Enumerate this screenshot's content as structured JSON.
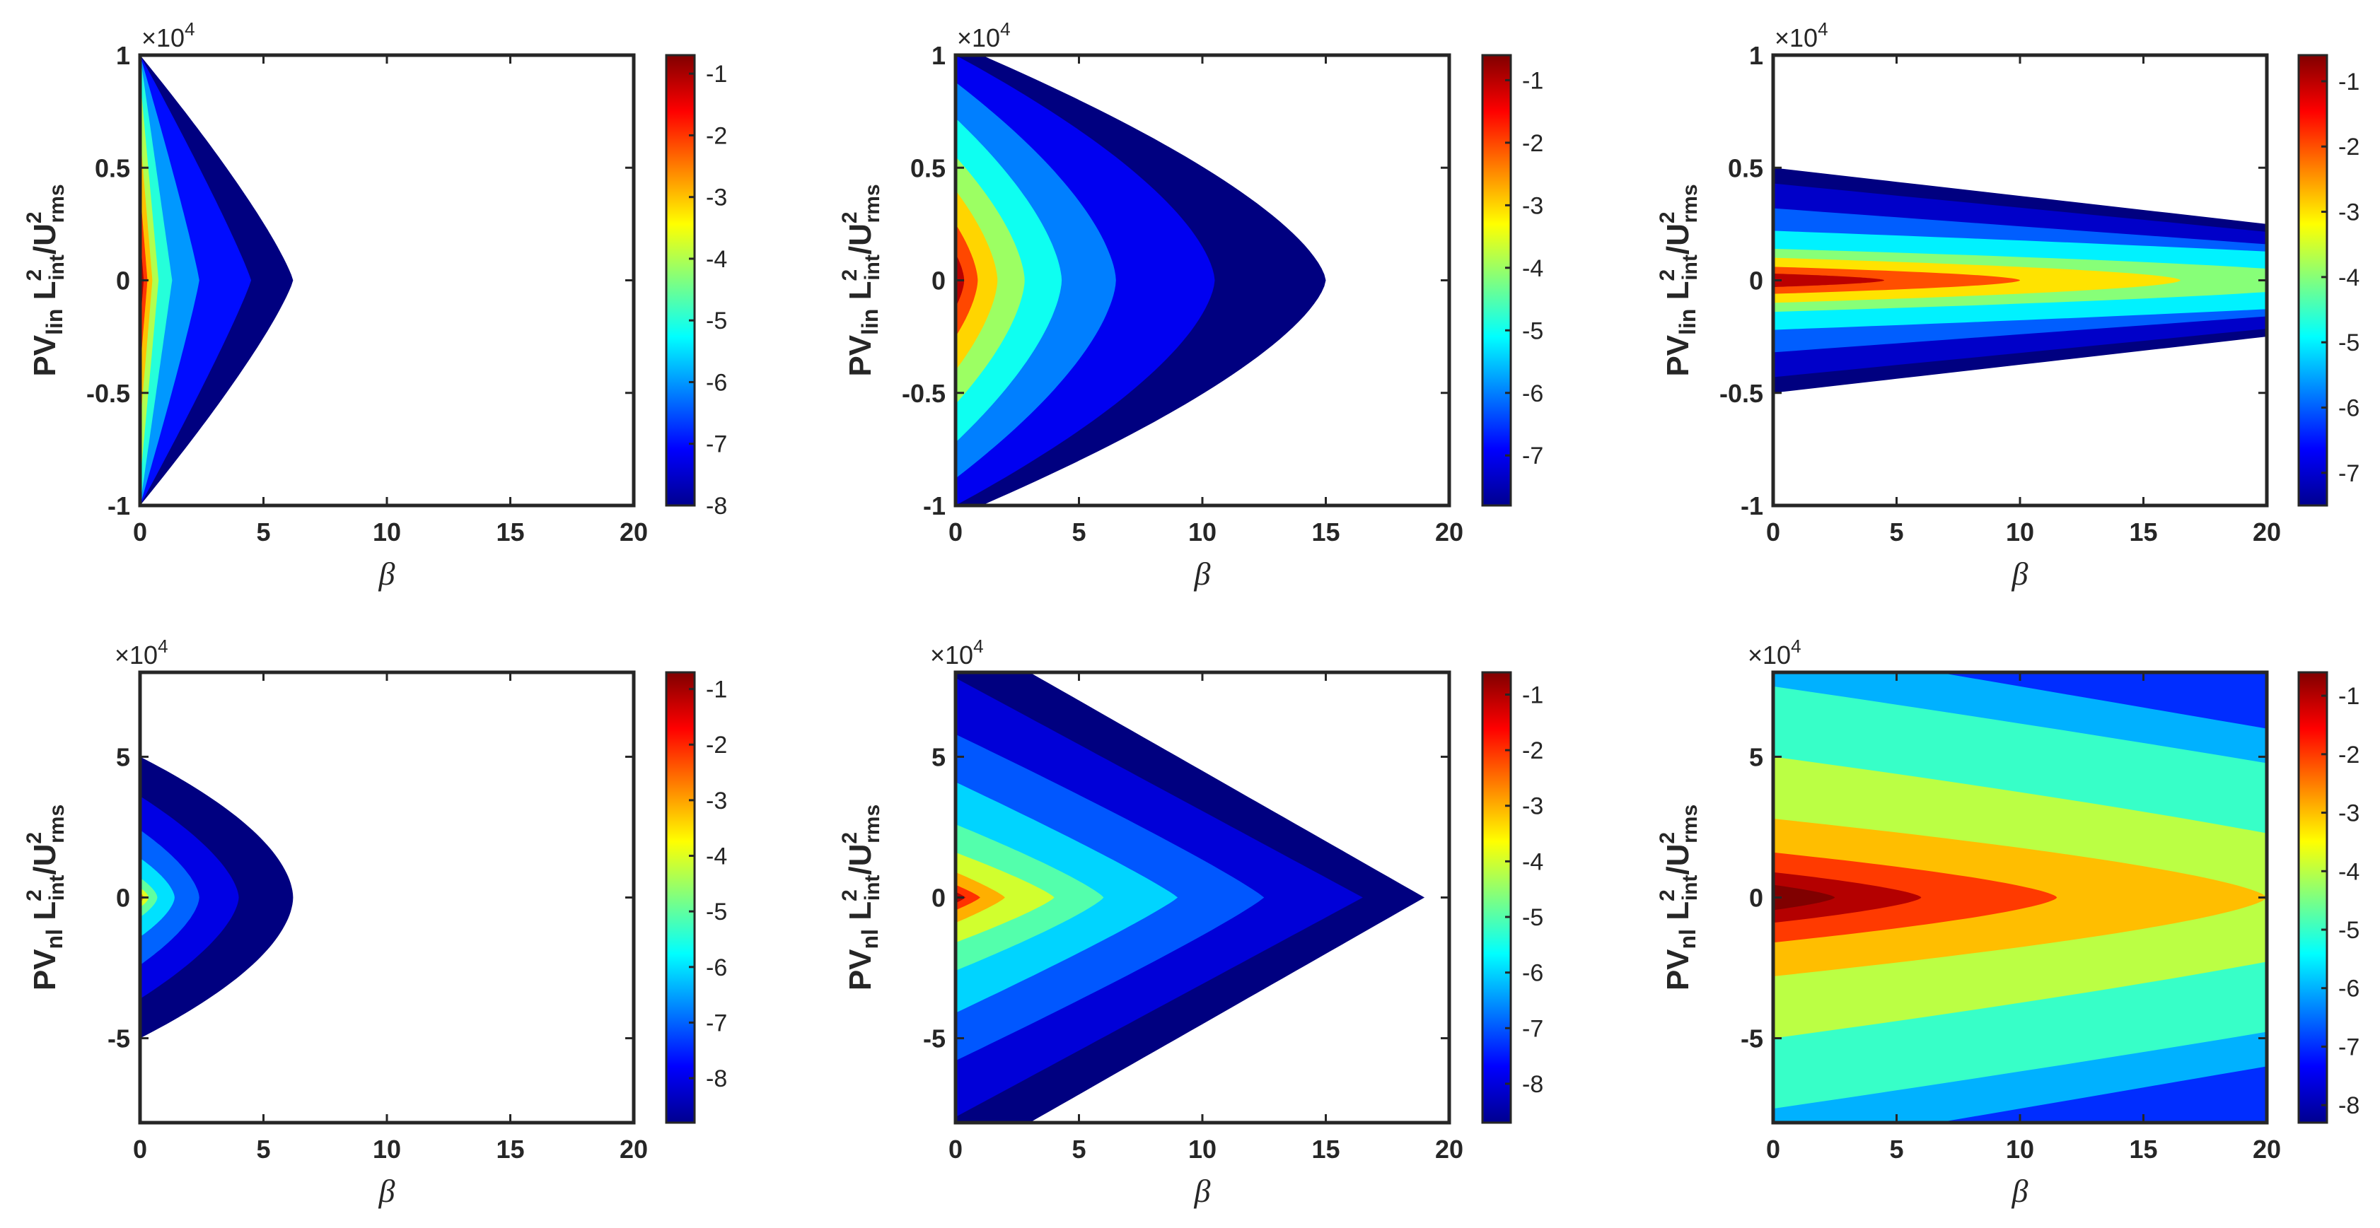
{
  "chart_data": [
    {
      "type": "heatmap",
      "row": 0,
      "col": 0,
      "xlabel": "β",
      "ylabel": {
        "base": "PV",
        "sub": "lin",
        "mid": " L",
        "sup1": "2",
        "sub1": "int",
        "slash": "/U",
        "sup2": "2",
        "sub2": "rms"
      },
      "xlim": [
        0,
        20
      ],
      "ylim": [
        -1,
        1
      ],
      "xticks": [
        "0",
        "5",
        "10",
        "15",
        "20"
      ],
      "yticks": [
        {
          "v": 1,
          "t": "1"
        },
        {
          "v": 0.5,
          "t": "0.5"
        },
        {
          "v": 0,
          "t": "0"
        },
        {
          "v": -0.5,
          "t": "-0.5"
        },
        {
          "v": -1,
          "t": "-1"
        }
      ],
      "yscale_label": "×10",
      "yscale_exp": "4",
      "colorbar": {
        "min": -8,
        "max": -0.7,
        "ticks": [
          "-1",
          "-2",
          "-3",
          "-4",
          "-5",
          "-6",
          "-7",
          "-8"
        ]
      },
      "contours": [
        {
          "level": -8,
          "xmax": 6.2,
          "yext": 1.0,
          "p": 1.2
        },
        {
          "level": -7,
          "xmax": 4.5,
          "yext": 1.0,
          "p": 1.1
        },
        {
          "level": -6,
          "xmax": 2.4,
          "yext": 1.0,
          "p": 1.1
        },
        {
          "level": -5,
          "xmax": 1.3,
          "yext": 1.0,
          "p": 1.0
        },
        {
          "level": -4,
          "xmax": 0.75,
          "yext": 0.9,
          "p": 1.0
        },
        {
          "level": -3,
          "xmax": 0.5,
          "yext": 0.65,
          "p": 1.0
        },
        {
          "level": -2,
          "xmax": 0.3,
          "yext": 0.4,
          "p": 1.0
        },
        {
          "level": -1,
          "xmax": 0.15,
          "yext": 0.2,
          "p": 1.0
        }
      ]
    },
    {
      "type": "heatmap",
      "row": 0,
      "col": 1,
      "xlabel": "β",
      "ylabel": {
        "base": "PV",
        "sub": "lin",
        "mid": " L",
        "sup1": "2",
        "sub1": "int",
        "slash": "/U",
        "sup2": "2",
        "sub2": "rms"
      },
      "xlim": [
        0,
        20
      ],
      "ylim": [
        -1,
        1
      ],
      "xticks": [
        "0",
        "5",
        "10",
        "15",
        "20"
      ],
      "yticks": [
        {
          "v": 1,
          "t": "1"
        },
        {
          "v": 0.5,
          "t": "0.5"
        },
        {
          "v": 0,
          "t": "0"
        },
        {
          "v": -0.5,
          "t": "-0.5"
        },
        {
          "v": -1,
          "t": "-1"
        }
      ],
      "yscale_label": "×10",
      "yscale_exp": "4",
      "colorbar": {
        "min": -7.8,
        "max": -0.6,
        "ticks": [
          "-1",
          "-2",
          "-3",
          "-4",
          "-5",
          "-6",
          "-7"
        ]
      },
      "contours": [
        {
          "level": -8,
          "xmax": 15.0,
          "yext": 1.05,
          "p": 1.5
        },
        {
          "level": -7,
          "xmax": 10.5,
          "yext": 1.0,
          "p": 1.6
        },
        {
          "level": -6,
          "xmax": 6.5,
          "yext": 0.88,
          "p": 1.6
        },
        {
          "level": -5,
          "xmax": 4.3,
          "yext": 0.72,
          "p": 1.6
        },
        {
          "level": -4,
          "xmax": 2.8,
          "yext": 0.55,
          "p": 1.6
        },
        {
          "level": -3,
          "xmax": 1.7,
          "yext": 0.4,
          "p": 1.6
        },
        {
          "level": -2,
          "xmax": 0.9,
          "yext": 0.25,
          "p": 1.6
        },
        {
          "level": -1,
          "xmax": 0.35,
          "yext": 0.12,
          "p": 1.6
        }
      ]
    },
    {
      "type": "heatmap",
      "row": 0,
      "col": 2,
      "xlabel": "β",
      "ylabel": {
        "base": "PV",
        "sub": "lin",
        "mid": " L",
        "sup1": "2",
        "sub1": "int",
        "slash": "/U",
        "sup2": "2",
        "sub2": "rms"
      },
      "xlim": [
        0,
        20
      ],
      "ylim": [
        -1,
        1
      ],
      "xticks": [
        "0",
        "5",
        "10",
        "15",
        "20"
      ],
      "yticks": [
        {
          "v": 1,
          "t": "1"
        },
        {
          "v": 0.5,
          "t": "0.5"
        },
        {
          "v": 0,
          "t": "0"
        },
        {
          "v": -0.5,
          "t": "-0.5"
        },
        {
          "v": -1,
          "t": "-1"
        }
      ],
      "yscale_label": "×10",
      "yscale_exp": "4",
      "colorbar": {
        "min": -7.5,
        "max": -0.6,
        "ticks": [
          "-1",
          "-2",
          "-3",
          "-4",
          "-5",
          "-6",
          "-7"
        ]
      },
      "contours": [
        {
          "level": -8,
          "xmax": 40,
          "yext": 0.5,
          "p": 1.0
        },
        {
          "level": -7,
          "xmax": 40,
          "yext": 0.43,
          "p": 1.0
        },
        {
          "level": -6,
          "xmax": 40,
          "yext": 0.32,
          "p": 1.0
        },
        {
          "level": -5,
          "xmax": 36,
          "yext": 0.22,
          "p": 1.5
        },
        {
          "level": -4,
          "xmax": 24,
          "yext": 0.14,
          "p": 1.8
        },
        {
          "level": -3,
          "xmax": 16.5,
          "yext": 0.1,
          "p": 1.8
        },
        {
          "level": -2,
          "xmax": 10,
          "yext": 0.06,
          "p": 1.8
        },
        {
          "level": -1,
          "xmax": 4.5,
          "yext": 0.03,
          "p": 1.8
        }
      ]
    },
    {
      "type": "heatmap",
      "row": 1,
      "col": 0,
      "xlabel": "β",
      "ylabel": {
        "base": "PV",
        "sub": "nl",
        "mid": " L",
        "sup1": "2",
        "sub1": "int",
        "slash": "/U",
        "sup2": "2",
        "sub2": "rms"
      },
      "xlim": [
        0,
        20
      ],
      "ylim": [
        -8,
        8
      ],
      "xticks": [
        "0",
        "5",
        "10",
        "15",
        "20"
      ],
      "yticks": [
        {
          "v": 5,
          "t": "5"
        },
        {
          "v": 0,
          "t": "0"
        },
        {
          "v": -5,
          "t": "-5"
        }
      ],
      "yscale_label": "×10",
      "yscale_exp": "4",
      "colorbar": {
        "min": -8.8,
        "max": -0.7,
        "ticks": [
          "-1",
          "-2",
          "-3",
          "-4",
          "-5",
          "-6",
          "-7",
          "-8"
        ]
      },
      "contours": [
        {
          "level": -9,
          "xmax": 6.2,
          "yext": 5.0,
          "p": 1.8
        },
        {
          "level": -8,
          "xmax": 4.0,
          "yext": 3.6,
          "p": 1.6
        },
        {
          "level": -7,
          "xmax": 2.4,
          "yext": 2.4,
          "p": 1.6
        },
        {
          "level": -6,
          "xmax": 1.4,
          "yext": 1.4,
          "p": 1.6
        },
        {
          "level": -5,
          "xmax": 0.7,
          "yext": 0.7,
          "p": 1.6
        },
        {
          "level": -4,
          "xmax": 0.35,
          "yext": 0.35,
          "p": 1.6
        },
        {
          "level": -3,
          "xmax": 0.15,
          "yext": 0.18,
          "p": 1.6
        }
      ]
    },
    {
      "type": "heatmap",
      "row": 1,
      "col": 1,
      "xlabel": "β",
      "ylabel": {
        "base": "PV",
        "sub": "nl",
        "mid": " L",
        "sup1": "2",
        "sub1": "int",
        "slash": "/U",
        "sup2": "2",
        "sub2": "rms"
      },
      "xlim": [
        0,
        20
      ],
      "ylim": [
        -8,
        8
      ],
      "xticks": [
        "0",
        "5",
        "10",
        "15",
        "20"
      ],
      "yticks": [
        {
          "v": 5,
          "t": "5"
        },
        {
          "v": 0,
          "t": "0"
        },
        {
          "v": -5,
          "t": "-5"
        }
      ],
      "yscale_label": "×10",
      "yscale_exp": "4",
      "colorbar": {
        "min": -8.7,
        "max": -0.6,
        "ticks": [
          "-1",
          "-2",
          "-3",
          "-4",
          "-5",
          "-6",
          "-7",
          "-8"
        ]
      },
      "contours": [
        {
          "level": -9,
          "xmax": 19.0,
          "yext": 9.5,
          "p": 1.0
        },
        {
          "level": -8,
          "xmax": 16.5,
          "yext": 7.8,
          "p": 1.0
        },
        {
          "level": -7,
          "xmax": 12.5,
          "yext": 5.8,
          "p": 1.1
        },
        {
          "level": -6,
          "xmax": 9.0,
          "yext": 4.1,
          "p": 1.1
        },
        {
          "level": -5,
          "xmax": 6.0,
          "yext": 2.6,
          "p": 1.2
        },
        {
          "level": -4,
          "xmax": 4.0,
          "yext": 1.6,
          "p": 1.2
        },
        {
          "level": -3,
          "xmax": 2.0,
          "yext": 0.9,
          "p": 1.2
        },
        {
          "level": -2,
          "xmax": 1.0,
          "yext": 0.45,
          "p": 1.2
        },
        {
          "level": -1,
          "xmax": 0.4,
          "yext": 0.2,
          "p": 1.2
        }
      ]
    },
    {
      "type": "heatmap",
      "row": 1,
      "col": 2,
      "xlabel": "β",
      "ylabel": {
        "base": "PV",
        "sub": "nl",
        "mid": " L",
        "sup1": "2",
        "sub1": "int",
        "slash": "/U",
        "sup2": "2",
        "sub2": "rms"
      },
      "xlim": [
        0,
        20
      ],
      "ylim": [
        -8,
        8
      ],
      "xticks": [
        "0",
        "5",
        "10",
        "15",
        "20"
      ],
      "yticks": [
        {
          "v": 5,
          "t": "5"
        },
        {
          "v": 0,
          "t": "0"
        },
        {
          "v": -5,
          "t": "-5"
        }
      ],
      "yscale_label": "×10",
      "yscale_exp": "4",
      "colorbar": {
        "min": -8.3,
        "max": -0.6,
        "ticks": [
          "-1",
          "-2",
          "-3",
          "-4",
          "-5",
          "-6",
          "-7",
          "-8"
        ]
      },
      "contours": [
        {
          "level": -7,
          "xmax": 60,
          "yext": 12,
          "p": 1.0
        },
        {
          "level": -6,
          "xmax": 60,
          "yext": 9.0,
          "p": 1.0
        },
        {
          "level": -5,
          "xmax": 45,
          "yext": 7.5,
          "p": 1.3
        },
        {
          "level": -4,
          "xmax": 30,
          "yext": 5.0,
          "p": 1.4
        },
        {
          "level": -3,
          "xmax": 20,
          "yext": 2.8,
          "p": 1.5
        },
        {
          "level": -2,
          "xmax": 11.5,
          "yext": 1.6,
          "p": 1.5
        },
        {
          "level": -1,
          "xmax": 6.0,
          "yext": 0.9,
          "p": 1.5
        },
        {
          "level": 0,
          "xmax": 2.5,
          "yext": 0.45,
          "p": 1.5
        },
        {
          "level": 1,
          "xmax": 0.8,
          "yext": 0.15,
          "p": 1.5
        }
      ]
    }
  ]
}
